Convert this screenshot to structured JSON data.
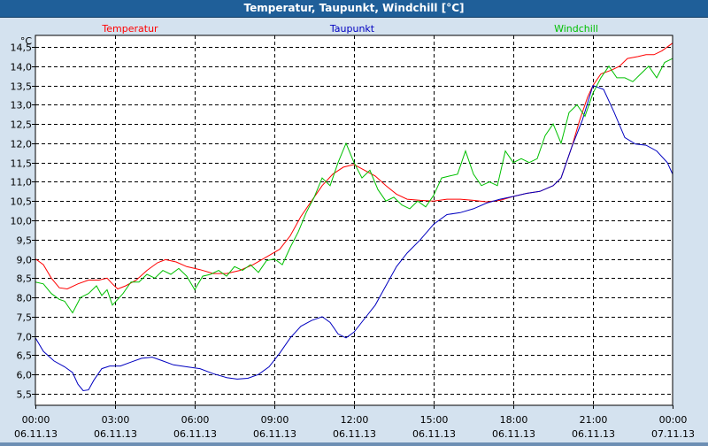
{
  "window": {
    "title": "Temperatur, Taupunkt, Windchill [°C]"
  },
  "chart_data": {
    "type": "line",
    "unit_label": "°C",
    "ylim": [
      5.2,
      14.8
    ],
    "y_ticks": [
      "5,5",
      "6,0",
      "6,5",
      "7,0",
      "7,5",
      "8,0",
      "8,5",
      "9,0",
      "9,5",
      "10,0",
      "10,5",
      "11,0",
      "11,5",
      "12,0",
      "12,5",
      "13,0",
      "13,5",
      "14,0",
      "14,5"
    ],
    "y_tick_values": [
      5.5,
      6.0,
      6.5,
      7.0,
      7.5,
      8.0,
      8.5,
      9.0,
      9.5,
      10.0,
      10.5,
      11.0,
      11.5,
      12.0,
      12.5,
      13.0,
      13.5,
      14.0,
      14.5
    ],
    "x_hours_range": [
      0,
      24
    ],
    "x_ticks": [
      {
        "hour": 0,
        "time": "00:00",
        "date": "06.11.13"
      },
      {
        "hour": 3,
        "time": "03:00",
        "date": "06.11.13"
      },
      {
        "hour": 6,
        "time": "06:00",
        "date": "06.11.13"
      },
      {
        "hour": 9,
        "time": "09:00",
        "date": "06.11.13"
      },
      {
        "hour": 12,
        "time": "12:00",
        "date": "06.11.13"
      },
      {
        "hour": 15,
        "time": "15:00",
        "date": "06.11.13"
      },
      {
        "hour": 18,
        "time": "18:00",
        "date": "06.11.13"
      },
      {
        "hour": 21,
        "time": "21:00",
        "date": "06.11.13"
      },
      {
        "hour": 24,
        "time": "00:00",
        "date": "07.11.13"
      }
    ],
    "grid": true,
    "series": [
      {
        "name": "Temperatur",
        "color": "#ff0000",
        "points": [
          [
            0,
            9.0
          ],
          [
            0.3,
            8.85
          ],
          [
            0.6,
            8.5
          ],
          [
            0.9,
            8.25
          ],
          [
            1.2,
            8.22
          ],
          [
            1.6,
            8.35
          ],
          [
            2.0,
            8.45
          ],
          [
            2.4,
            8.45
          ],
          [
            2.7,
            8.5
          ],
          [
            2.9,
            8.35
          ],
          [
            3.1,
            8.22
          ],
          [
            3.4,
            8.3
          ],
          [
            3.8,
            8.45
          ],
          [
            4.2,
            8.7
          ],
          [
            4.6,
            8.9
          ],
          [
            4.9,
            8.98
          ],
          [
            5.3,
            8.92
          ],
          [
            5.7,
            8.8
          ],
          [
            6.2,
            8.72
          ],
          [
            6.7,
            8.62
          ],
          [
            7.2,
            8.62
          ],
          [
            7.7,
            8.7
          ],
          [
            8.2,
            8.85
          ],
          [
            8.7,
            9.05
          ],
          [
            9.2,
            9.25
          ],
          [
            9.6,
            9.6
          ],
          [
            10.0,
            10.1
          ],
          [
            10.4,
            10.5
          ],
          [
            10.8,
            10.9
          ],
          [
            11.2,
            11.2
          ],
          [
            11.6,
            11.38
          ],
          [
            12.0,
            11.45
          ],
          [
            12.4,
            11.3
          ],
          [
            12.8,
            11.15
          ],
          [
            13.2,
            10.9
          ],
          [
            13.6,
            10.68
          ],
          [
            14.0,
            10.55
          ],
          [
            14.5,
            10.52
          ],
          [
            15.0,
            10.5
          ],
          [
            15.5,
            10.55
          ],
          [
            16.0,
            10.55
          ],
          [
            16.5,
            10.52
          ],
          [
            17.0,
            10.48
          ],
          [
            17.5,
            10.52
          ],
          [
            18.0,
            10.62
          ],
          [
            18.5,
            10.7
          ],
          [
            19.0,
            10.75
          ],
          [
            19.5,
            10.9
          ],
          [
            19.8,
            11.1
          ],
          [
            20.2,
            11.9
          ],
          [
            20.5,
            12.6
          ],
          [
            20.8,
            13.2
          ],
          [
            21.0,
            13.5
          ],
          [
            21.3,
            13.8
          ],
          [
            21.7,
            13.9
          ],
          [
            22.0,
            14.0
          ],
          [
            22.3,
            14.2
          ],
          [
            22.7,
            14.25
          ],
          [
            23.0,
            14.3
          ],
          [
            23.3,
            14.3
          ],
          [
            23.6,
            14.4
          ],
          [
            24.0,
            14.6
          ]
        ]
      },
      {
        "name": "Taupunkt",
        "color": "#0000c0",
        "points": [
          [
            0,
            6.95
          ],
          [
            0.3,
            6.6
          ],
          [
            0.7,
            6.35
          ],
          [
            1.1,
            6.2
          ],
          [
            1.4,
            6.05
          ],
          [
            1.6,
            5.75
          ],
          [
            1.8,
            5.58
          ],
          [
            2.0,
            5.6
          ],
          [
            2.2,
            5.85
          ],
          [
            2.5,
            6.15
          ],
          [
            2.8,
            6.22
          ],
          [
            3.2,
            6.22
          ],
          [
            3.6,
            6.32
          ],
          [
            4.0,
            6.42
          ],
          [
            4.4,
            6.45
          ],
          [
            4.8,
            6.35
          ],
          [
            5.2,
            6.25
          ],
          [
            5.7,
            6.2
          ],
          [
            6.2,
            6.15
          ],
          [
            6.7,
            6.02
          ],
          [
            7.2,
            5.92
          ],
          [
            7.6,
            5.88
          ],
          [
            8.0,
            5.9
          ],
          [
            8.4,
            6.0
          ],
          [
            8.8,
            6.2
          ],
          [
            9.2,
            6.55
          ],
          [
            9.6,
            6.95
          ],
          [
            10.0,
            7.25
          ],
          [
            10.4,
            7.4
          ],
          [
            10.8,
            7.5
          ],
          [
            11.1,
            7.35
          ],
          [
            11.4,
            7.05
          ],
          [
            11.7,
            6.95
          ],
          [
            12.0,
            7.1
          ],
          [
            12.4,
            7.45
          ],
          [
            12.8,
            7.8
          ],
          [
            13.2,
            8.3
          ],
          [
            13.6,
            8.8
          ],
          [
            14.0,
            9.15
          ],
          [
            14.5,
            9.5
          ],
          [
            15.0,
            9.9
          ],
          [
            15.5,
            10.15
          ],
          [
            16.0,
            10.2
          ],
          [
            16.5,
            10.3
          ],
          [
            17.0,
            10.45
          ],
          [
            17.5,
            10.55
          ],
          [
            18.0,
            10.62
          ],
          [
            18.5,
            10.7
          ],
          [
            19.0,
            10.75
          ],
          [
            19.5,
            10.9
          ],
          [
            19.8,
            11.1
          ],
          [
            20.2,
            11.9
          ],
          [
            20.6,
            12.6
          ],
          [
            21.0,
            13.5
          ],
          [
            21.4,
            13.4
          ],
          [
            21.8,
            12.8
          ],
          [
            22.2,
            12.15
          ],
          [
            22.6,
            11.98
          ],
          [
            23.0,
            11.95
          ],
          [
            23.4,
            11.8
          ],
          [
            23.8,
            11.5
          ],
          [
            24.0,
            11.2
          ],
          [
            24.3,
            10.8
          ],
          [
            24.6,
            10.75
          ]
        ]
      },
      {
        "name": "Windchill",
        "color": "#00c000",
        "points": [
          [
            0,
            8.4
          ],
          [
            0.3,
            8.35
          ],
          [
            0.6,
            8.1
          ],
          [
            0.9,
            7.95
          ],
          [
            1.1,
            7.9
          ],
          [
            1.4,
            7.6
          ],
          [
            1.7,
            8.0
          ],
          [
            2.0,
            8.1
          ],
          [
            2.3,
            8.3
          ],
          [
            2.5,
            8.05
          ],
          [
            2.7,
            8.2
          ],
          [
            2.9,
            7.8
          ],
          [
            3.1,
            7.95
          ],
          [
            3.3,
            8.1
          ],
          [
            3.6,
            8.4
          ],
          [
            3.9,
            8.4
          ],
          [
            4.2,
            8.6
          ],
          [
            4.5,
            8.5
          ],
          [
            4.8,
            8.7
          ],
          [
            5.1,
            8.6
          ],
          [
            5.4,
            8.75
          ],
          [
            5.7,
            8.55
          ],
          [
            6.0,
            8.2
          ],
          [
            6.3,
            8.55
          ],
          [
            6.6,
            8.6
          ],
          [
            6.9,
            8.7
          ],
          [
            7.2,
            8.55
          ],
          [
            7.5,
            8.8
          ],
          [
            7.8,
            8.7
          ],
          [
            8.1,
            8.85
          ],
          [
            8.4,
            8.65
          ],
          [
            8.7,
            8.95
          ],
          [
            9.0,
            9.0
          ],
          [
            9.3,
            8.85
          ],
          [
            9.6,
            9.3
          ],
          [
            9.9,
            9.7
          ],
          [
            10.2,
            10.2
          ],
          [
            10.5,
            10.6
          ],
          [
            10.8,
            11.1
          ],
          [
            11.1,
            10.9
          ],
          [
            11.4,
            11.5
          ],
          [
            11.7,
            12.0
          ],
          [
            12.0,
            11.5
          ],
          [
            12.3,
            11.1
          ],
          [
            12.6,
            11.3
          ],
          [
            12.9,
            10.8
          ],
          [
            13.2,
            10.5
          ],
          [
            13.5,
            10.6
          ],
          [
            13.8,
            10.4
          ],
          [
            14.1,
            10.3
          ],
          [
            14.4,
            10.5
          ],
          [
            14.7,
            10.35
          ],
          [
            15.0,
            10.65
          ],
          [
            15.3,
            11.1
          ],
          [
            15.6,
            11.15
          ],
          [
            15.9,
            11.2
          ],
          [
            16.2,
            11.8
          ],
          [
            16.5,
            11.2
          ],
          [
            16.8,
            10.9
          ],
          [
            17.1,
            11.0
          ],
          [
            17.4,
            10.9
          ],
          [
            17.7,
            11.8
          ],
          [
            18.0,
            11.5
          ],
          [
            18.3,
            11.6
          ],
          [
            18.6,
            11.5
          ],
          [
            18.9,
            11.6
          ],
          [
            19.2,
            12.2
          ],
          [
            19.5,
            12.5
          ],
          [
            19.8,
            12.0
          ],
          [
            20.1,
            12.8
          ],
          [
            20.4,
            13.0
          ],
          [
            20.7,
            12.7
          ],
          [
            21.0,
            13.3
          ],
          [
            21.3,
            13.7
          ],
          [
            21.6,
            14.0
          ],
          [
            21.9,
            13.7
          ],
          [
            22.2,
            13.7
          ],
          [
            22.5,
            13.6
          ],
          [
            22.8,
            13.8
          ],
          [
            23.1,
            14.0
          ],
          [
            23.4,
            13.7
          ],
          [
            23.7,
            14.1
          ],
          [
            24.0,
            14.2
          ],
          [
            24.3,
            14.15
          ],
          [
            24.6,
            14.35
          ]
        ]
      }
    ]
  }
}
